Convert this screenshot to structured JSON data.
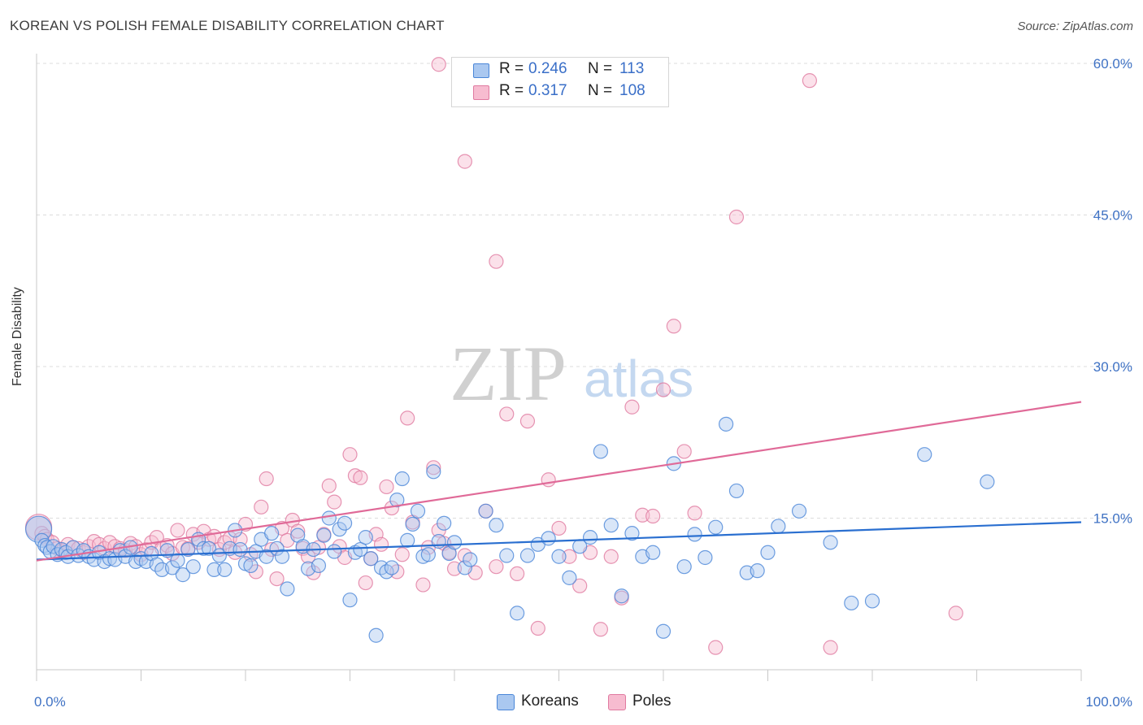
{
  "header": {
    "title": "KOREAN VS POLISH FEMALE DISABILITY CORRELATION CHART",
    "source": "Source: ZipAtlas.com"
  },
  "watermark": {
    "zip": "ZIP",
    "atlas": "atlas"
  },
  "stats": [
    {
      "r_label": "R =",
      "r_value": "0.246",
      "n_label": "N =",
      "n_value": "113"
    },
    {
      "r_label": "R =",
      "r_value": "0.317",
      "n_label": "N =",
      "n_value": "108"
    }
  ],
  "legend": [
    {
      "label": "Koreans"
    },
    {
      "label": "Poles"
    }
  ],
  "colors": {
    "koreans_fill": "#aac8f0",
    "koreans_stroke": "#4a86d8",
    "koreans_line": "#2a6fd0",
    "poles_fill": "#f7bcd0",
    "poles_stroke": "#e07aa0",
    "poles_line": "#e06a98",
    "tick_label": "#3f72c4"
  },
  "chart_data": {
    "type": "scatter",
    "title": "KOREAN VS POLISH FEMALE DISABILITY CORRELATION CHART",
    "xlabel": "",
    "ylabel": "Female Disability",
    "xlim": [
      0,
      100
    ],
    "ylim": [
      0,
      60
    ],
    "x_tick_labels": [
      "0.0%",
      "100.0%"
    ],
    "y_ticks": [
      15,
      30,
      45,
      60
    ],
    "y_tick_labels": [
      "15.0%",
      "30.0%",
      "45.0%",
      "60.0%"
    ],
    "grid": "horizontal dashed",
    "legend_position": "bottom-center",
    "series": [
      {
        "name": "Koreans",
        "r": 0.246,
        "n": 113,
        "trend": [
          [
            0,
            10.9
          ],
          [
            100,
            14.6
          ]
        ],
        "points": [
          [
            0.2,
            13.9
          ],
          [
            0.5,
            12.8
          ],
          [
            0.8,
            12.3
          ],
          [
            1.0,
            12.1
          ],
          [
            1.3,
            11.7
          ],
          [
            1.6,
            12.2
          ],
          [
            2.0,
            11.4
          ],
          [
            2.4,
            11.9
          ],
          [
            2.8,
            11.6
          ],
          [
            3.0,
            11.2
          ],
          [
            3.5,
            12.1
          ],
          [
            4.0,
            11.3
          ],
          [
            4.5,
            11.8
          ],
          [
            5.0,
            11.2
          ],
          [
            5.5,
            10.9
          ],
          [
            6.0,
            11.6
          ],
          [
            6.5,
            10.7
          ],
          [
            7.0,
            11.0
          ],
          [
            7.5,
            10.9
          ],
          [
            8.0,
            11.8
          ],
          [
            8.5,
            11.2
          ],
          [
            9.0,
            12.1
          ],
          [
            9.5,
            10.7
          ],
          [
            10.0,
            11.0
          ],
          [
            10.5,
            10.7
          ],
          [
            11.0,
            11.5
          ],
          [
            11.5,
            10.4
          ],
          [
            12.0,
            9.9
          ],
          [
            12.5,
            11.8
          ],
          [
            13.0,
            10.1
          ],
          [
            13.5,
            10.8
          ],
          [
            14.0,
            9.4
          ],
          [
            14.5,
            11.9
          ],
          [
            15.0,
            10.2
          ],
          [
            15.5,
            12.9
          ],
          [
            16.0,
            12.0
          ],
          [
            16.5,
            12.0
          ],
          [
            17.0,
            9.9
          ],
          [
            17.5,
            11.3
          ],
          [
            18.0,
            9.9
          ],
          [
            18.5,
            12.0
          ],
          [
            19.0,
            13.8
          ],
          [
            19.5,
            11.9
          ],
          [
            20.0,
            10.5
          ],
          [
            20.5,
            10.3
          ],
          [
            21.0,
            11.7
          ],
          [
            21.5,
            12.9
          ],
          [
            22.0,
            11.2
          ],
          [
            22.5,
            13.5
          ],
          [
            23.0,
            12.0
          ],
          [
            23.5,
            11.2
          ],
          [
            24.0,
            8.0
          ],
          [
            25.0,
            13.3
          ],
          [
            25.5,
            12.2
          ],
          [
            26.0,
            10.0
          ],
          [
            26.5,
            11.9
          ],
          [
            27.0,
            10.3
          ],
          [
            27.5,
            13.3
          ],
          [
            28.0,
            15.0
          ],
          [
            28.5,
            11.7
          ],
          [
            29.0,
            13.9
          ],
          [
            29.5,
            14.5
          ],
          [
            30.0,
            6.9
          ],
          [
            30.5,
            11.6
          ],
          [
            31.0,
            11.9
          ],
          [
            31.5,
            13.1
          ],
          [
            32.0,
            11.0
          ],
          [
            32.5,
            3.4
          ],
          [
            33.0,
            10.1
          ],
          [
            33.5,
            9.7
          ],
          [
            34.0,
            10.1
          ],
          [
            34.5,
            16.8
          ],
          [
            35.0,
            18.9
          ],
          [
            35.5,
            12.8
          ],
          [
            36.0,
            14.4
          ],
          [
            36.5,
            15.7
          ],
          [
            37.0,
            11.2
          ],
          [
            37.5,
            11.4
          ],
          [
            38.0,
            19.6
          ],
          [
            38.5,
            12.7
          ],
          [
            39.0,
            14.5
          ],
          [
            39.5,
            11.5
          ],
          [
            40.0,
            12.6
          ],
          [
            41.0,
            10.1
          ],
          [
            41.5,
            10.9
          ],
          [
            43.0,
            15.7
          ],
          [
            44.0,
            14.3
          ],
          [
            45.0,
            11.3
          ],
          [
            46.0,
            5.6
          ],
          [
            47.0,
            11.3
          ],
          [
            48.0,
            12.4
          ],
          [
            49.0,
            13.0
          ],
          [
            50.0,
            11.2
          ],
          [
            51.0,
            9.1
          ],
          [
            52.0,
            12.2
          ],
          [
            53.0,
            13.1
          ],
          [
            54.0,
            21.6
          ],
          [
            55.0,
            14.3
          ],
          [
            56.0,
            7.3
          ],
          [
            57.0,
            13.5
          ],
          [
            58.0,
            11.2
          ],
          [
            59.0,
            11.6
          ],
          [
            60.0,
            3.8
          ],
          [
            61.0,
            20.4
          ],
          [
            62.0,
            10.2
          ],
          [
            63.0,
            13.4
          ],
          [
            64.0,
            11.1
          ],
          [
            65.0,
            14.1
          ],
          [
            66.0,
            24.3
          ],
          [
            67.0,
            17.7
          ],
          [
            68.0,
            9.6
          ],
          [
            69.0,
            9.8
          ],
          [
            70.0,
            11.6
          ],
          [
            71.0,
            14.2
          ],
          [
            73.0,
            15.7
          ],
          [
            76.0,
            12.6
          ],
          [
            78.0,
            6.6
          ],
          [
            80.0,
            6.8
          ],
          [
            85.0,
            21.3
          ],
          [
            91.0,
            18.6
          ]
        ]
      },
      {
        "name": "Poles",
        "r": 0.317,
        "n": 108,
        "trend": [
          [
            0,
            10.8
          ],
          [
            100,
            26.5
          ]
        ],
        "points": [
          [
            0.2,
            14.1
          ],
          [
            0.5,
            13.5
          ],
          [
            0.8,
            13.2
          ],
          [
            1.0,
            12.9
          ],
          [
            1.5,
            12.6
          ],
          [
            2.0,
            12.0
          ],
          [
            2.5,
            11.8
          ],
          [
            3.0,
            12.4
          ],
          [
            3.5,
            12.1
          ],
          [
            4.0,
            12.0
          ],
          [
            4.5,
            11.6
          ],
          [
            5.0,
            12.2
          ],
          [
            5.5,
            12.7
          ],
          [
            6.0,
            12.4
          ],
          [
            6.5,
            12.0
          ],
          [
            7.0,
            12.6
          ],
          [
            7.5,
            12.2
          ],
          [
            8.0,
            12.0
          ],
          [
            8.5,
            11.8
          ],
          [
            9.0,
            12.5
          ],
          [
            9.5,
            12.2
          ],
          [
            10.0,
            11.4
          ],
          [
            10.5,
            11.9
          ],
          [
            11.0,
            12.6
          ],
          [
            11.5,
            13.1
          ],
          [
            12.0,
            12.0
          ],
          [
            12.5,
            12.3
          ],
          [
            13.0,
            11.5
          ],
          [
            13.5,
            13.8
          ],
          [
            14.0,
            12.1
          ],
          [
            14.5,
            12.0
          ],
          [
            15.0,
            13.4
          ],
          [
            15.5,
            12.6
          ],
          [
            16.0,
            13.7
          ],
          [
            16.5,
            12.9
          ],
          [
            17.0,
            13.2
          ],
          [
            17.5,
            11.9
          ],
          [
            18.0,
            12.6
          ],
          [
            18.5,
            13.0
          ],
          [
            19.0,
            11.6
          ],
          [
            19.5,
            12.9
          ],
          [
            20.0,
            14.4
          ],
          [
            20.5,
            11.4
          ],
          [
            21.0,
            9.7
          ],
          [
            21.5,
            16.1
          ],
          [
            22.0,
            18.9
          ],
          [
            22.5,
            11.9
          ],
          [
            23.0,
            9.0
          ],
          [
            23.5,
            14.0
          ],
          [
            24.0,
            12.8
          ],
          [
            24.5,
            14.8
          ],
          [
            25.0,
            13.7
          ],
          [
            25.5,
            12.0
          ],
          [
            26.0,
            11.2
          ],
          [
            26.5,
            9.6
          ],
          [
            27.0,
            12.1
          ],
          [
            27.5,
            13.4
          ],
          [
            28.0,
            18.2
          ],
          [
            28.5,
            16.6
          ],
          [
            29.0,
            12.2
          ],
          [
            29.5,
            11.1
          ],
          [
            30.0,
            21.3
          ],
          [
            30.5,
            19.2
          ],
          [
            31.0,
            19.0
          ],
          [
            31.5,
            8.6
          ],
          [
            32.0,
            11.0
          ],
          [
            32.5,
            13.4
          ],
          [
            33.0,
            12.4
          ],
          [
            33.5,
            18.1
          ],
          [
            34.0,
            16.0
          ],
          [
            34.5,
            9.7
          ],
          [
            35.0,
            11.4
          ],
          [
            35.5,
            24.9
          ],
          [
            36.0,
            14.6
          ],
          [
            37.0,
            8.4
          ],
          [
            37.5,
            12.1
          ],
          [
            38.0,
            20.0
          ],
          [
            38.5,
            13.8
          ],
          [
            39.0,
            12.5
          ],
          [
            39.5,
            11.6
          ],
          [
            40.0,
            10.0
          ],
          [
            41.0,
            11.3
          ],
          [
            42.0,
            9.6
          ],
          [
            43.0,
            15.7
          ],
          [
            44.0,
            10.2
          ],
          [
            45.0,
            25.3
          ],
          [
            46.0,
            9.5
          ],
          [
            47.0,
            24.6
          ],
          [
            48.0,
            4.1
          ],
          [
            49.0,
            18.8
          ],
          [
            50.0,
            14.0
          ],
          [
            51.0,
            11.2
          ],
          [
            52.0,
            8.3
          ],
          [
            53.0,
            11.6
          ],
          [
            54.0,
            4.0
          ],
          [
            55.0,
            11.2
          ],
          [
            56.0,
            7.1
          ],
          [
            57.0,
            26.0
          ],
          [
            58.0,
            15.3
          ],
          [
            59.0,
            15.2
          ],
          [
            60.0,
            27.7
          ],
          [
            61.0,
            34.0
          ],
          [
            62.0,
            21.6
          ],
          [
            63.0,
            15.5
          ],
          [
            65.0,
            2.2
          ],
          [
            67.0,
            44.8
          ],
          [
            74.0,
            58.3
          ],
          [
            76.0,
            2.2
          ],
          [
            88.0,
            5.6
          ],
          [
            38.5,
            59.9
          ],
          [
            41.0,
            50.3
          ],
          [
            44.0,
            40.4
          ]
        ]
      }
    ]
  }
}
